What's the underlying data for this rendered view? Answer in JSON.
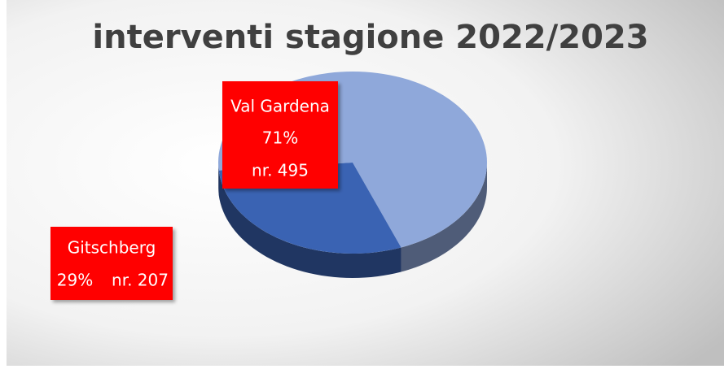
{
  "chart_data": {
    "type": "pie3d",
    "title": "interventi stagione 2022/2023",
    "categories": [
      "Val Gardena",
      "Gitschberg"
    ],
    "values": [
      495,
      207
    ],
    "value_labels": [
      "nr. 495",
      "nr.  207"
    ],
    "percent_labels": [
      "71%",
      "29%"
    ],
    "colors": [
      "#8fa8da",
      "#3a63b3"
    ],
    "label_color": "#ff0000"
  }
}
